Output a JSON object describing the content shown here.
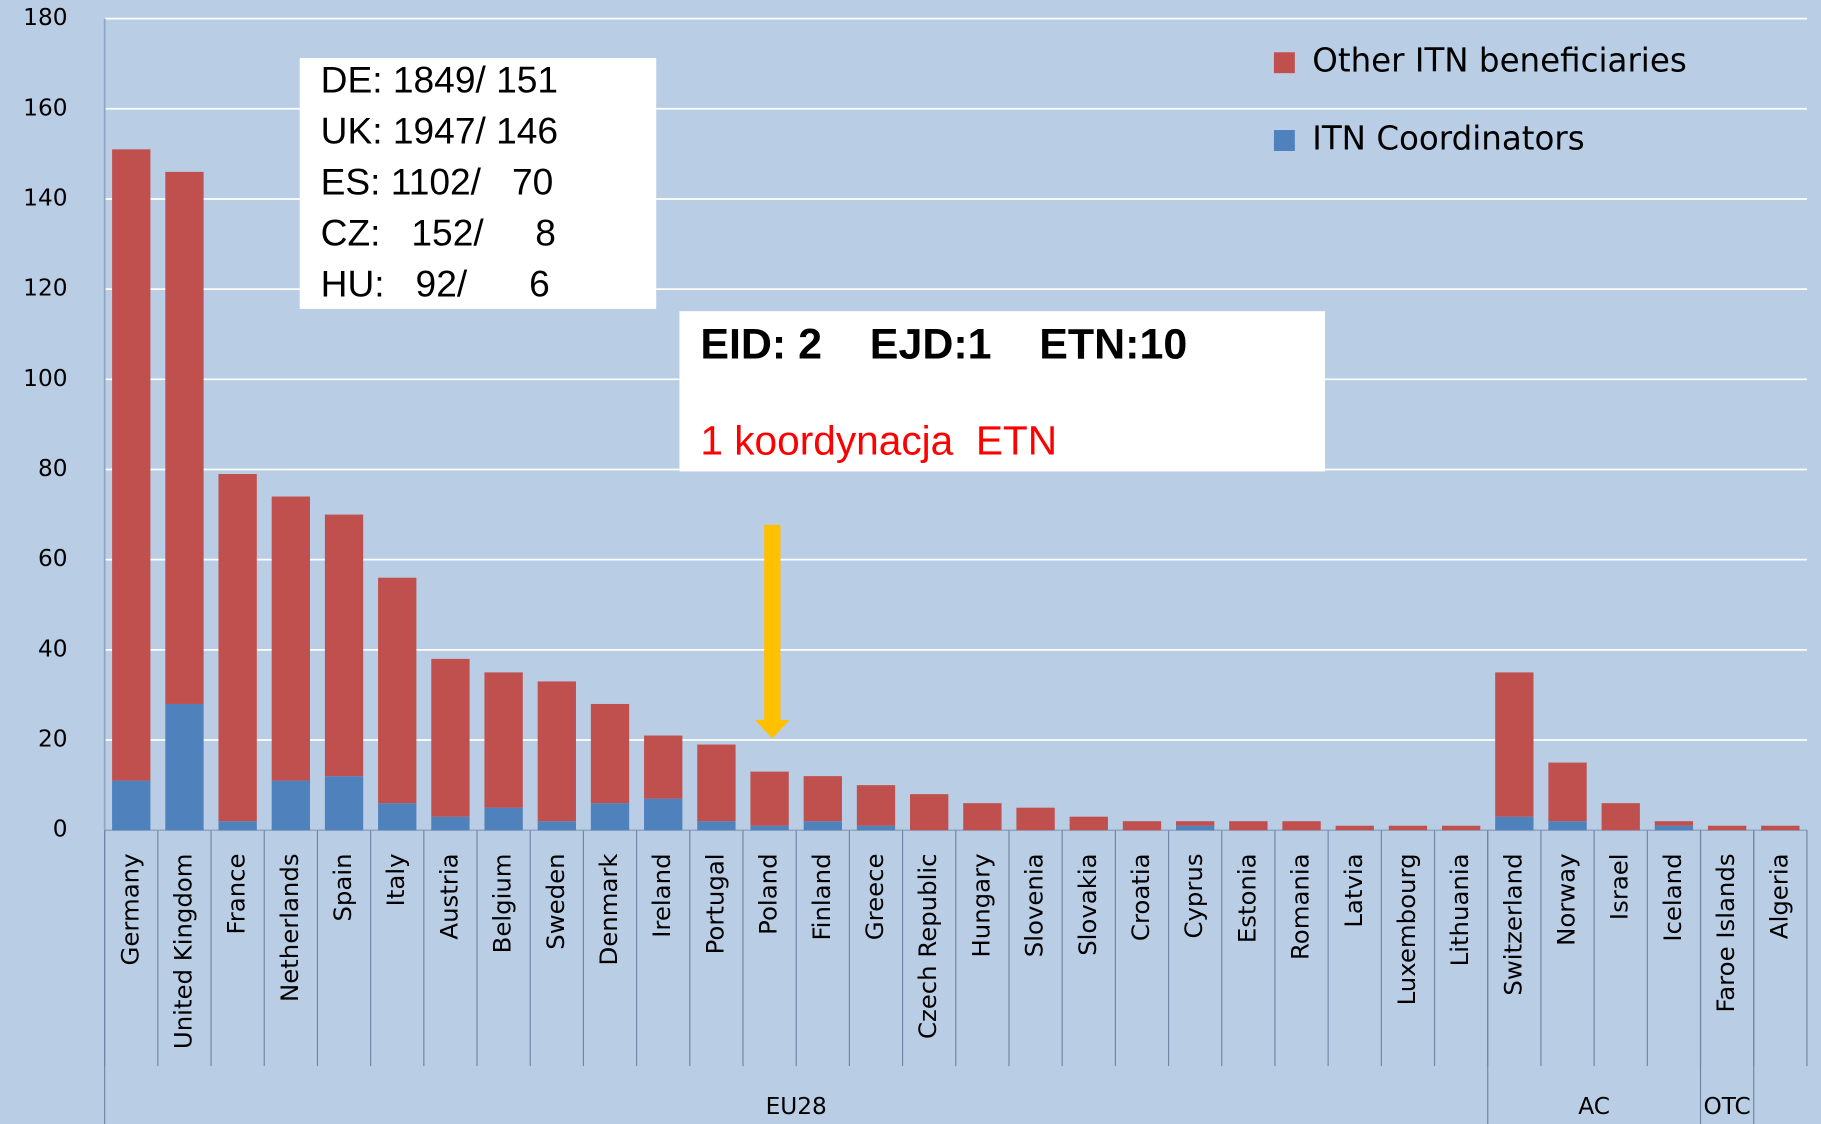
{
  "chart_data": {
    "type": "stacked_bar",
    "categories": [
      "Germany",
      "United Kingdom",
      "France",
      "Netherlands",
      "Spain",
      "Italy",
      "Austria",
      "Belgium",
      "Sweden",
      "Denmark",
      "Ireland",
      "Portugal",
      "Poland",
      "Finland",
      "Greece",
      "Czech Republic",
      "Hungary",
      "Slovenia",
      "Slovakia",
      "Croatia",
      "Cyprus",
      "Estonia",
      "Romania",
      "Latvia",
      "Luxembourg",
      "Lithuania",
      "Switzerland",
      "Norway",
      "Israel",
      "Iceland",
      "Faroe Islands",
      "Algeria"
    ],
    "series": [
      {
        "name": "ITN Coordinators",
        "color": "#4f81bd",
        "values": [
          11,
          28,
          2,
          11,
          12,
          6,
          3,
          5,
          2,
          6,
          7,
          2,
          1,
          2,
          1,
          0,
          0,
          0,
          0,
          0,
          1,
          0,
          0,
          0,
          0,
          0,
          3,
          2,
          0,
          1,
          0,
          0
        ]
      },
      {
        "name": "Other ITN beneficiaries",
        "color": "#c0504d",
        "values": [
          140,
          118,
          77,
          63,
          58,
          50,
          35,
          30,
          31,
          22,
          14,
          17,
          12,
          10,
          9,
          8,
          6,
          5,
          3,
          2,
          1,
          2,
          2,
          1,
          1,
          1,
          32,
          13,
          6,
          1,
          1,
          1
        ]
      }
    ],
    "groups": [
      {
        "label": "EU28",
        "count": 26
      },
      {
        "label": "AC",
        "count": 4
      },
      {
        "label": "OTC",
        "count": 1
      }
    ],
    "ylim": [
      0,
      180
    ],
    "yticks": [
      0,
      20,
      40,
      60,
      80,
      100,
      120,
      140,
      160,
      180
    ],
    "grid": true,
    "legend": "top-right",
    "annotations": {
      "totals": [
        "DE: 1849/ 151",
        "UK: 1947/ 146",
        "ES: 1102/   70",
        "CZ:   152/     8",
        "HU:   92/      6"
      ],
      "poland": "EID: 2    EJD:1    ETN:10",
      "poland_note": "1 koordynacja  ETN"
    }
  }
}
